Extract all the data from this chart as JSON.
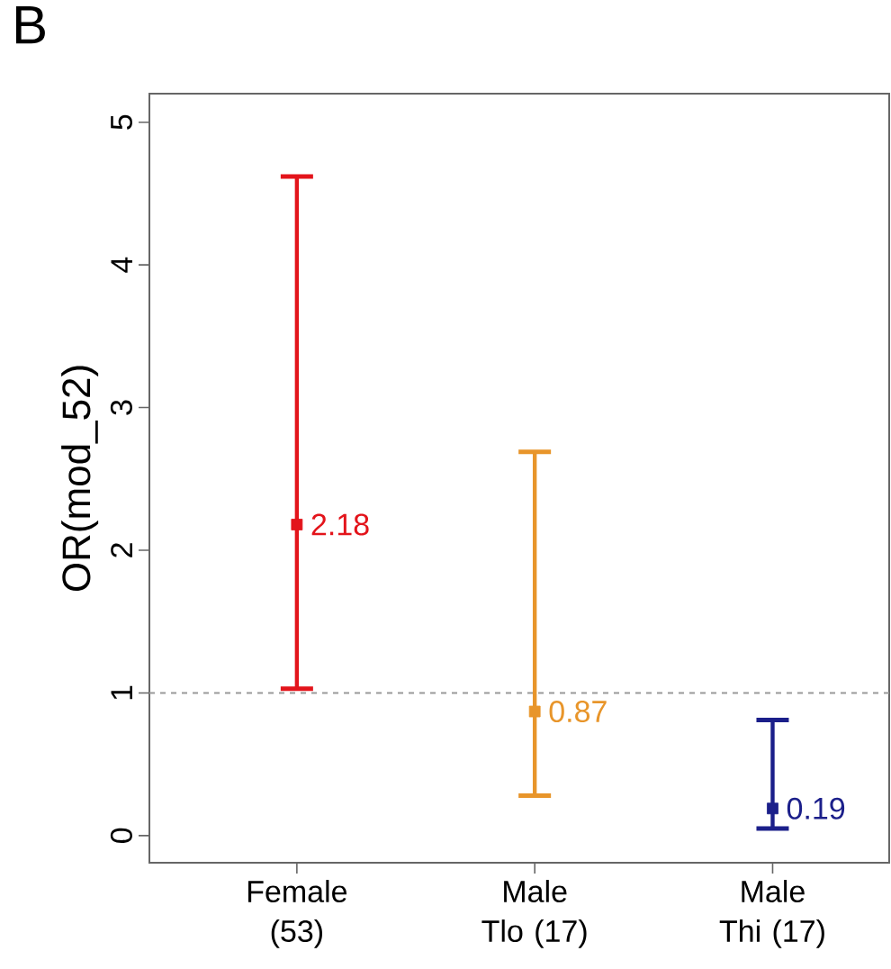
{
  "chart_data": {
    "type": "scatter",
    "ylabel": "OR(mod_52)",
    "annotations": [
      "B"
    ],
    "categories": [
      "Female (53)",
      "Male Tlo (17)",
      "Male Thi (17)"
    ],
    "values": [
      2.18,
      0.87,
      0.19
    ],
    "errors": [
      [
        1.03,
        4.62
      ],
      [
        0.28,
        2.69
      ],
      [
        0.05,
        0.81
      ]
    ],
    "colors": [
      "#e3141b",
      "#e8952a",
      "#1b1f8a"
    ],
    "data_labels": true,
    "marker": "square",
    "ylim": [
      -0.19,
      5.2
    ],
    "yticks": [
      0,
      1,
      2,
      3,
      4,
      5
    ],
    "ref_lines": [
      {
        "axis": "y",
        "value": 1,
        "color": "#999999",
        "line_style": "dashed"
      }
    ]
  }
}
